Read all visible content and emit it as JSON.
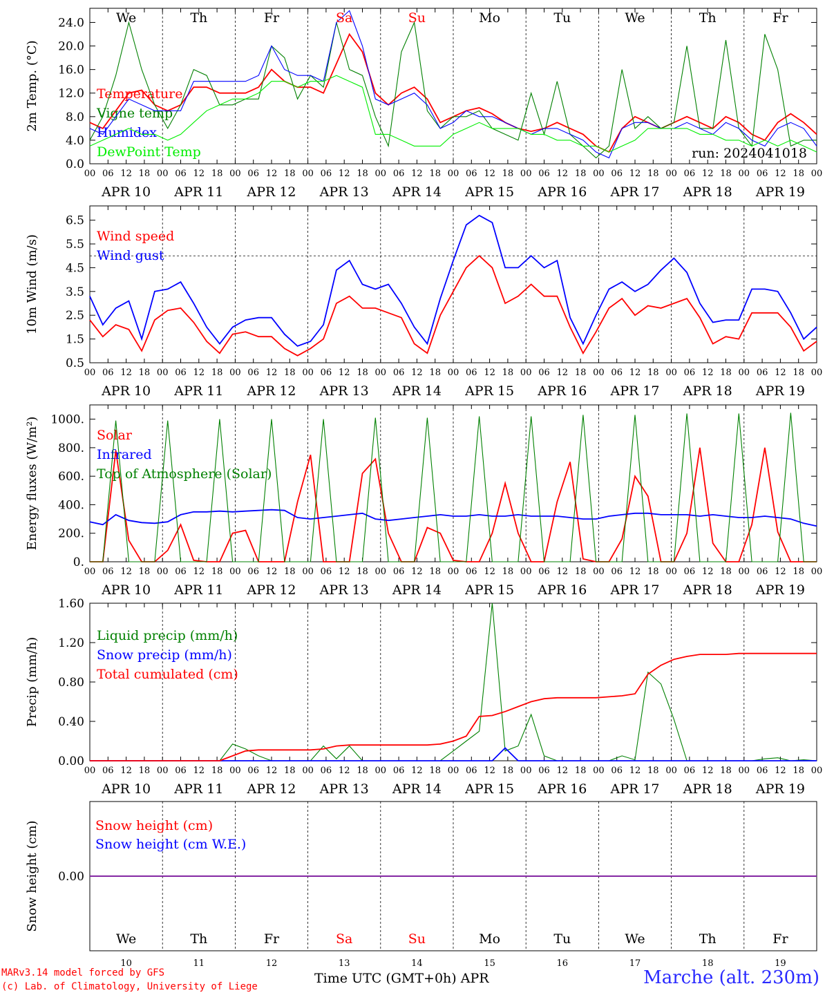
{
  "x_ticks": [
    "00",
    "06",
    "12",
    "18"
  ],
  "days": [
    {
      "abbr": "We",
      "date": "APR 10",
      "num": "10",
      "weekend": false
    },
    {
      "abbr": "Th",
      "date": "APR 11",
      "num": "11",
      "weekend": false
    },
    {
      "abbr": "Fr",
      "date": "APR 12",
      "num": "12",
      "weekend": false
    },
    {
      "abbr": "Sa",
      "date": "APR 13",
      "num": "13",
      "weekend": true
    },
    {
      "abbr": "Su",
      "date": "APR 14",
      "num": "14",
      "weekend": true
    },
    {
      "abbr": "Mo",
      "date": "APR 15",
      "num": "15",
      "weekend": false
    },
    {
      "abbr": "Tu",
      "date": "APR 16",
      "num": "16",
      "weekend": false
    },
    {
      "abbr": "We",
      "date": "APR 17",
      "num": "17",
      "weekend": false
    },
    {
      "abbr": "Th",
      "date": "APR 18",
      "num": "18",
      "weekend": false
    },
    {
      "abbr": "Fr",
      "date": "APR 19",
      "num": "19",
      "weekend": false
    }
  ],
  "run_label": "run: 2024041018",
  "footer": {
    "model": "MARv3.14 model forced by GFS",
    "credit": "(c) Lab. of Climatology, University of Liege",
    "xaxis": "Time UTC (GMT+0h) APR",
    "station": "Marche (alt. 230m)"
  },
  "colors": {
    "red": "#ff0000",
    "green": "#008000",
    "blue": "#0000ff",
    "lightgreen": "#00ee00",
    "purple": "#8020a0",
    "weekend": "#ff0000"
  },
  "chart_data": [
    {
      "type": "line",
      "ylabel": "2m Temp. (°C)",
      "yticks": [
        "0.0",
        "4.0",
        "8.0",
        "12.0",
        "16.0",
        "20.0",
        "24.0"
      ],
      "ylim": [
        0,
        26.4
      ],
      "x_hours_step": 6,
      "series": [
        {
          "name": "Temperature",
          "color": "red",
          "values": [
            7,
            6,
            9,
            12,
            12.5,
            10,
            9,
            10,
            13,
            13,
            12,
            12,
            12,
            13,
            16,
            14,
            13,
            13,
            12,
            17,
            22,
            19,
            12,
            10,
            12,
            13,
            11,
            7,
            8,
            9,
            9.5,
            8.5,
            7,
            6,
            5.5,
            6,
            7,
            6,
            5,
            3,
            2,
            6,
            8,
            7,
            6,
            7,
            8,
            7,
            6,
            8,
            7,
            5,
            4,
            7,
            8.5,
            7,
            5
          ]
        },
        {
          "name": "Vigne temp",
          "color": "green",
          "values": [
            4,
            8,
            15,
            24,
            16,
            10,
            6,
            10,
            16,
            15,
            10,
            10,
            11,
            11,
            20,
            18,
            11,
            15,
            13,
            24,
            16,
            15,
            8,
            3,
            19,
            24,
            9,
            6,
            8,
            8,
            9,
            6,
            5,
            4,
            12,
            5,
            14,
            5,
            3,
            1,
            3,
            16,
            6,
            8,
            6,
            7,
            20,
            6,
            6,
            21,
            6,
            3,
            22,
            16,
            3,
            4,
            4
          ]
        },
        {
          "name": "Humidex",
          "color": "blue",
          "values": [
            6,
            5,
            8,
            11,
            10,
            9,
            9,
            9,
            14,
            14,
            14,
            14,
            14,
            15,
            20,
            16,
            15,
            15,
            14,
            24,
            26,
            20,
            11,
            10,
            11,
            12,
            10,
            6,
            7,
            9,
            8,
            8,
            7,
            6,
            5,
            6,
            6,
            5,
            4,
            2,
            1,
            6,
            7,
            7,
            6,
            6,
            7,
            6,
            5,
            7,
            6,
            4,
            3,
            6,
            7,
            6,
            3
          ]
        },
        {
          "name": "DewPoint Temp",
          "color": "lightgreen",
          "values": [
            3,
            4,
            5,
            6,
            5,
            5,
            4,
            5,
            7,
            9,
            10,
            11,
            11,
            12,
            14,
            14,
            13,
            14,
            14,
            15,
            14,
            13,
            5,
            5,
            4,
            3,
            3,
            3,
            5,
            6,
            7,
            6,
            6,
            6,
            5,
            5,
            4,
            4,
            3,
            3,
            2,
            3,
            4,
            6,
            6,
            6,
            6,
            5,
            5,
            4,
            4,
            3,
            4,
            3,
            4,
            3,
            2
          ]
        }
      ]
    },
    {
      "type": "line",
      "ylabel": "10m Wind (m/s)",
      "yticks": [
        "0.5",
        "1.5",
        "2.5",
        "3.5",
        "4.5",
        "5.5",
        "6.5"
      ],
      "ylim": [
        0.5,
        7.1
      ],
      "reference_line": 5,
      "x_hours_step": 6,
      "series": [
        {
          "name": "Wind speed",
          "color": "red",
          "values": [
            2.3,
            1.6,
            2.1,
            1.9,
            1.0,
            2.3,
            2.7,
            2.8,
            2.2,
            1.4,
            0.9,
            1.7,
            1.8,
            1.6,
            1.6,
            1.1,
            0.8,
            1.1,
            1.5,
            3.0,
            3.3,
            2.8,
            2.8,
            2.6,
            2.4,
            1.3,
            0.9,
            2.5,
            3.5,
            4.5,
            5.0,
            4.5,
            3.0,
            3.3,
            3.8,
            3.3,
            3.3,
            2.0,
            0.9,
            1.8,
            2.8,
            3.2,
            2.5,
            2.9,
            2.8,
            3.0,
            3.2,
            2.4,
            1.3,
            1.6,
            1.5,
            2.6,
            2.6,
            2.6,
            2.0,
            1.0,
            1.4
          ]
        },
        {
          "name": "Wind gust",
          "color": "blue",
          "values": [
            3.3,
            2.1,
            2.8,
            3.1,
            1.5,
            3.5,
            3.6,
            3.9,
            3.0,
            2.0,
            1.3,
            2.0,
            2.3,
            2.4,
            2.4,
            1.7,
            1.2,
            1.4,
            2.1,
            4.4,
            4.8,
            3.8,
            3.6,
            3.8,
            3.0,
            2.0,
            1.3,
            3.2,
            4.8,
            6.3,
            6.7,
            6.4,
            4.5,
            4.5,
            5.0,
            4.5,
            4.8,
            2.4,
            1.3,
            2.5,
            3.6,
            3.9,
            3.5,
            3.8,
            4.4,
            4.9,
            4.3,
            3.0,
            2.2,
            2.3,
            2.3,
            3.6,
            3.6,
            3.5,
            2.6,
            1.5,
            2.0
          ]
        }
      ]
    },
    {
      "type": "line",
      "ylabel": "Energy fluxes (W/m²)",
      "yticks": [
        "0.",
        "200.",
        "400.",
        "600.",
        "800.",
        "1000."
      ],
      "ylim": [
        0,
        1100
      ],
      "x_hours_step": 6,
      "series": [
        {
          "name": "Solar",
          "color": "red",
          "values": [
            0,
            0,
            780,
            150,
            0,
            0,
            80,
            260,
            10,
            0,
            0,
            200,
            220,
            0,
            0,
            0,
            420,
            750,
            0,
            0,
            0,
            620,
            720,
            200,
            0,
            0,
            240,
            200,
            10,
            0,
            0,
            200,
            550,
            200,
            0,
            0,
            420,
            700,
            20,
            0,
            0,
            160,
            600,
            460,
            0,
            0,
            200,
            800,
            130,
            0,
            0,
            260,
            800,
            210,
            0,
            0,
            0
          ]
        },
        {
          "name": "Infrared",
          "color": "blue",
          "values": [
            280,
            260,
            330,
            290,
            275,
            270,
            280,
            330,
            350,
            350,
            355,
            350,
            355,
            360,
            365,
            360,
            310,
            300,
            310,
            320,
            330,
            340,
            300,
            290,
            300,
            310,
            320,
            330,
            320,
            320,
            330,
            320,
            320,
            330,
            320,
            320,
            320,
            310,
            300,
            300,
            320,
            330,
            340,
            340,
            330,
            330,
            330,
            320,
            330,
            320,
            310,
            310,
            320,
            310,
            300,
            270,
            250
          ]
        },
        {
          "name": "Top of Atmosphere (Solar)",
          "color": "green",
          "values": [
            0,
            0,
            990,
            0,
            0,
            0,
            990,
            0,
            0,
            0,
            1000,
            0,
            0,
            0,
            1000,
            0,
            0,
            0,
            1000,
            0,
            0,
            0,
            1010,
            0,
            0,
            0,
            1010,
            0,
            0,
            0,
            1020,
            0,
            0,
            0,
            1020,
            0,
            0,
            0,
            1030,
            0,
            0,
            0,
            1030,
            0,
            0,
            0,
            1040,
            0,
            0,
            0,
            1040,
            0,
            0,
            0,
            1045,
            0,
            0
          ]
        }
      ]
    },
    {
      "type": "line",
      "ylabel": "Precip (mm/h)",
      "yticks": [
        "0.00",
        "0.40",
        "0.80",
        "1.20",
        "1.60"
      ],
      "ylim": [
        0,
        1.6
      ],
      "x_hours_step": 6,
      "series": [
        {
          "name": "Liquid precip (mm/h)",
          "color": "green",
          "values": [
            0,
            0,
            0,
            0,
            0,
            0,
            0,
            0,
            0,
            0,
            0,
            0.17,
            0.12,
            0.05,
            0,
            0,
            0,
            0,
            0.15,
            0.02,
            0.15,
            0,
            0,
            0,
            0,
            0,
            0,
            0,
            0.1,
            0.2,
            0.3,
            1.6,
            0.1,
            0.15,
            0.47,
            0.05,
            0,
            0,
            0,
            0,
            0,
            0.05,
            0.01,
            0.9,
            0.78,
            0.42,
            0,
            0,
            0,
            0,
            0,
            0,
            0.02,
            0.03,
            0,
            0.01,
            0
          ]
        },
        {
          "name": "Snow precip (mm/h)",
          "color": "blue",
          "values": [
            0,
            0,
            0,
            0,
            0,
            0,
            0,
            0,
            0,
            0,
            0,
            0,
            0,
            0,
            0,
            0,
            0,
            0,
            0,
            0,
            0,
            0,
            0,
            0,
            0,
            0,
            0,
            0,
            0,
            0,
            0,
            0,
            0.13,
            0,
            0,
            0,
            0,
            0,
            0,
            0,
            0,
            0,
            0,
            0,
            0,
            0,
            0,
            0,
            0,
            0,
            0,
            0,
            0,
            0,
            0,
            0,
            0
          ]
        },
        {
          "name": "Total cumulated (cm)",
          "color": "red",
          "values": [
            0,
            0,
            0,
            0,
            0,
            0,
            0,
            0,
            0,
            0,
            0,
            0.05,
            0.1,
            0.11,
            0.11,
            0.11,
            0.11,
            0.11,
            0.12,
            0.15,
            0.16,
            0.16,
            0.16,
            0.16,
            0.16,
            0.16,
            0.16,
            0.17,
            0.2,
            0.25,
            0.45,
            0.46,
            0.5,
            0.55,
            0.6,
            0.63,
            0.64,
            0.64,
            0.64,
            0.64,
            0.65,
            0.66,
            0.68,
            0.88,
            0.97,
            1.03,
            1.06,
            1.08,
            1.08,
            1.08,
            1.09,
            1.09,
            1.09,
            1.09,
            1.09,
            1.09,
            1.09
          ]
        }
      ]
    },
    {
      "type": "line",
      "ylabel": "Snow height (cm)",
      "yticks": [
        "0.00"
      ],
      "ylim": [
        -1,
        1
      ],
      "x_hours_step": 6,
      "series": [
        {
          "name": "Snow height (cm)",
          "color": "red",
          "values": [
            0,
            0
          ]
        },
        {
          "name": "Snow height (cm W.E.)",
          "color": "blue",
          "values": [
            0,
            0
          ]
        }
      ]
    }
  ]
}
